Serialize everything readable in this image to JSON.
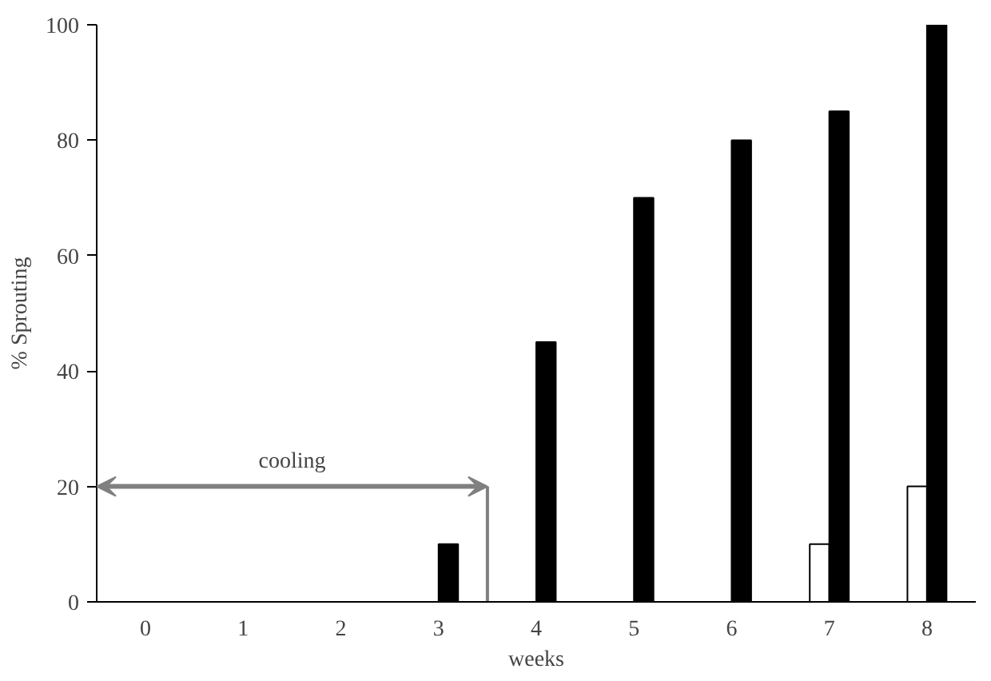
{
  "chart_data": {
    "type": "bar",
    "xlabel": "weeks",
    "ylabel": "% Sprouting",
    "categories": [
      "0",
      "1",
      "2",
      "3",
      "4",
      "5",
      "6",
      "7",
      "8"
    ],
    "series": [
      {
        "color": "#ffffff",
        "values": [
          0,
          0,
          0,
          0,
          0,
          0,
          0,
          10,
          20
        ]
      },
      {
        "color": "#000000",
        "values": [
          0,
          0,
          0,
          10,
          45,
          70,
          80,
          85,
          100
        ]
      }
    ],
    "ylim": [
      0,
      100
    ],
    "yticks": [
      0,
      20,
      40,
      60,
      80,
      100
    ],
    "grid": false,
    "annotations": [
      "cooling"
    ]
  }
}
